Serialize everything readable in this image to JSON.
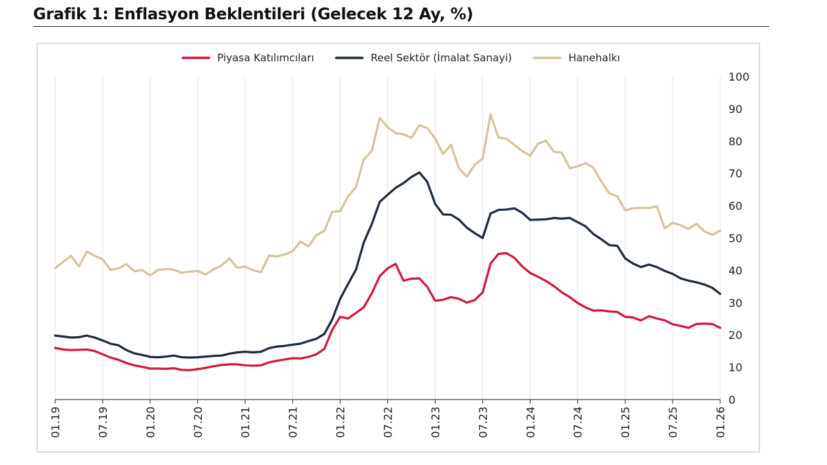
{
  "title": "Grafik 1: Enflasyon Beklentileri (Gelecek 12 Ay, %)",
  "chart_data": {
    "type": "line",
    "title": "Grafik 1: Enflasyon Beklentileri (Gelecek 12 Ay, %)",
    "xlabel": "",
    "ylabel": "",
    "ylim": [
      0,
      100
    ],
    "y_ticks": [
      0,
      10,
      20,
      30,
      40,
      50,
      60,
      70,
      80,
      90,
      100
    ],
    "y_axis_side": "right",
    "x_tick_labels": [
      "01.19",
      "07.19",
      "01.20",
      "07.20",
      "01.21",
      "07.21",
      "01.22",
      "07.22",
      "01.23",
      "07.23",
      "01.24",
      "07.24",
      "01.25",
      "07.25",
      "01.26"
    ],
    "x_start": "01.19",
    "x_end": "01.26",
    "frequency": "monthly",
    "grid": "vertical",
    "legend_position": "top-center",
    "series": [
      {
        "name": "Piyasa Katılımcıları",
        "color": "#d2173f",
        "values": [
          16.0,
          15.5,
          15.3,
          15.4,
          15.5,
          15.0,
          14.0,
          13.0,
          12.3,
          11.3,
          10.6,
          10.1,
          9.6,
          9.6,
          9.5,
          9.7,
          9.2,
          9.1,
          9.4,
          9.8,
          10.3,
          10.7,
          10.9,
          10.9,
          10.6,
          10.5,
          10.6,
          11.5,
          12.0,
          12.4,
          12.8,
          12.7,
          13.2,
          14.0,
          15.7,
          21.6,
          25.6,
          25.1,
          26.8,
          28.6,
          32.9,
          38.2,
          40.6,
          42.0,
          36.8,
          37.4,
          37.5,
          34.9,
          30.6,
          30.9,
          31.7,
          31.2,
          30.0,
          30.8,
          33.2,
          42.1,
          45.1,
          45.3,
          43.9,
          41.2,
          39.2,
          38.0,
          36.7,
          35.1,
          33.2,
          31.7,
          29.9,
          28.5,
          27.5,
          27.6,
          27.3,
          27.1,
          25.6,
          25.4,
          24.5,
          25.8,
          25.1,
          24.5,
          23.3,
          22.8,
          22.2,
          23.4,
          23.5,
          23.4,
          22.2
        ]
      },
      {
        "name": "Reel Sektör (İmalat Sanayi)",
        "color": "#1c2b3f",
        "values": [
          19.8,
          19.5,
          19.2,
          19.3,
          19.8,
          19.2,
          18.3,
          17.3,
          16.8,
          15.3,
          14.3,
          13.8,
          13.2,
          13.1,
          13.3,
          13.6,
          13.1,
          13.0,
          13.1,
          13.3,
          13.5,
          13.6,
          14.2,
          14.6,
          14.8,
          14.6,
          14.8,
          15.9,
          16.4,
          16.6,
          17.0,
          17.3,
          18.1,
          18.8,
          20.3,
          24.8,
          31.2,
          35.8,
          40.2,
          48.7,
          54.3,
          61.2,
          63.4,
          65.5,
          67.0,
          68.9,
          70.3,
          67.4,
          60.6,
          57.3,
          57.2,
          55.7,
          53.2,
          51.5,
          50.0,
          57.6,
          58.7,
          58.8,
          59.2,
          57.8,
          55.6,
          55.7,
          55.8,
          56.2,
          56.0,
          56.2,
          54.9,
          53.6,
          51.2,
          49.6,
          47.8,
          47.6,
          43.7,
          42.1,
          41.0,
          41.8,
          41.0,
          39.8,
          38.9,
          37.5,
          36.8,
          36.3,
          35.6,
          34.6,
          32.7
        ]
      },
      {
        "name": "Hanehalkı",
        "color": "#d8c29e",
        "values": [
          40.7,
          42.6,
          44.5,
          41.2,
          45.8,
          44.5,
          43.4,
          40.2,
          40.6,
          41.9,
          39.7,
          40.1,
          38.4,
          40.1,
          40.4,
          40.2,
          39.2,
          39.6,
          39.8,
          38.7,
          40.3,
          41.5,
          43.7,
          40.8,
          41.2,
          40.0,
          39.4,
          44.6,
          44.3,
          44.9,
          45.9,
          48.9,
          47.4,
          50.9,
          52.2,
          58.1,
          58.3,
          62.9,
          65.7,
          74.4,
          76.9,
          87.2,
          84.3,
          82.5,
          82.1,
          81.0,
          84.9,
          84.0,
          80.8,
          76.0,
          78.9,
          71.6,
          69.0,
          72.7,
          74.6,
          88.3,
          81.1,
          80.7,
          78.8,
          76.9,
          75.5,
          79.2,
          80.1,
          76.7,
          76.4,
          71.6,
          72.2,
          73.2,
          71.7,
          67.4,
          63.8,
          62.9,
          58.6,
          59.2,
          59.3,
          59.3,
          59.8,
          53.0,
          54.7,
          54.0,
          52.8,
          54.4,
          52.1,
          51.0,
          52.3
        ]
      }
    ]
  }
}
